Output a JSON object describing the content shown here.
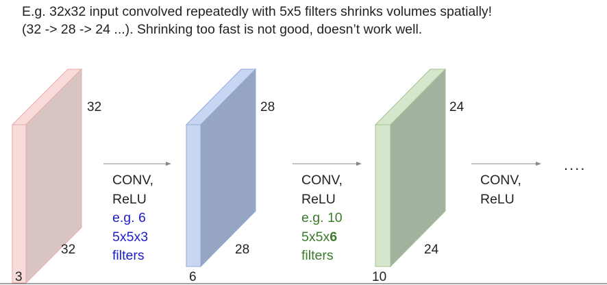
{
  "caption": {
    "line1": "E.g. 32x32 input convolved repeatedly with 5x5 filters shrinks volumes spatially!",
    "line2": "(32 -> 28 -> 24 ...). Shrinking too fast is not good, doesn’t work well."
  },
  "volumes": [
    {
      "height": "32",
      "width": "32",
      "depth": "3",
      "front_color": "#f7dcda",
      "side_color": "#d9c4c4",
      "edge_color": "#e9a8a8"
    },
    {
      "height": "28",
      "width": "28",
      "depth": "6",
      "front_color": "#c8d6f2",
      "side_color": "#96a6c2",
      "edge_color": "#8fa9d8"
    },
    {
      "height": "24",
      "width": "24",
      "depth": "10",
      "front_color": "#d6e6cc",
      "side_color": "#a2b29f",
      "edge_color": "#a3c292"
    }
  ],
  "ops": [
    {
      "line1": "CONV,",
      "line2": "ReLU",
      "line3": "e.g. 6",
      "line4": "5x5x3",
      "line5": "filters"
    },
    {
      "line1": "CONV,",
      "line2": "ReLU",
      "line3": "e.g. 10",
      "line4_prefix": "5x5x",
      "line4_bold": "6",
      "line5": "filters"
    },
    {
      "line1": "CONV,",
      "line2": "ReLU"
    }
  ],
  "ellipsis": "....",
  "colors": {
    "blue_text": "#1c1ccc",
    "green_text": "#3a7a2a",
    "arrow": "#888888"
  }
}
